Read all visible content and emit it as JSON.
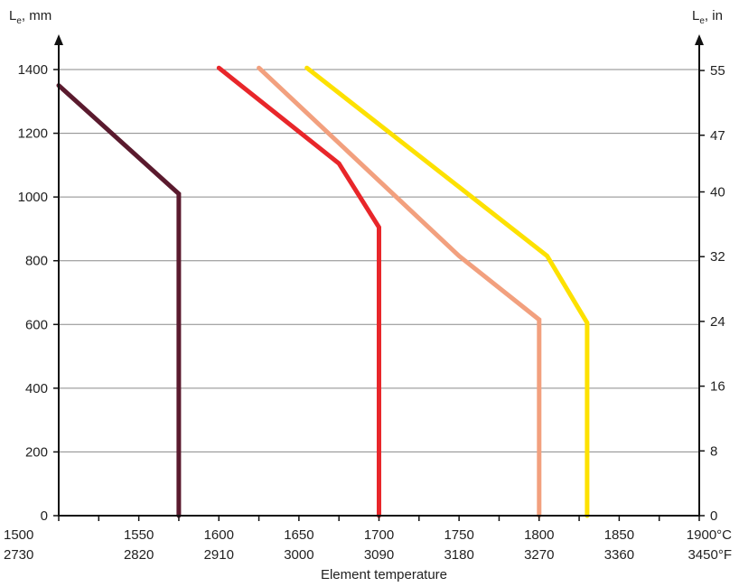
{
  "chart_data": {
    "type": "line",
    "y_left_label_main": "L",
    "y_left_label_sub": "e",
    "y_left_label_unit": ", mm",
    "y_right_label_main": "L",
    "y_right_label_sub": "e",
    "y_right_label_unit": ", in",
    "xlabel": "Element temperature",
    "xlim": [
      1500,
      1900
    ],
    "ylim": [
      0,
      1450
    ],
    "grid": "horizontal",
    "x_ticks_c": [
      {
        "value": 1500,
        "label": "1500"
      },
      {
        "value": 1550,
        "label": "1550"
      },
      {
        "value": 1600,
        "label": "1600"
      },
      {
        "value": 1650,
        "label": "1650"
      },
      {
        "value": 1700,
        "label": "1700"
      },
      {
        "value": 1750,
        "label": "1750"
      },
      {
        "value": 1800,
        "label": "1800"
      },
      {
        "value": 1850,
        "label": "1850"
      },
      {
        "value": 1900,
        "label": "1900°C"
      }
    ],
    "x_ticks_f": [
      {
        "value": 1500,
        "label": "2730"
      },
      {
        "value": 1550,
        "label": "2820"
      },
      {
        "value": 1600,
        "label": "2910"
      },
      {
        "value": 1650,
        "label": "3000"
      },
      {
        "value": 1700,
        "label": "3090"
      },
      {
        "value": 1750,
        "label": "3180"
      },
      {
        "value": 1800,
        "label": "3270"
      },
      {
        "value": 1850,
        "label": "3360"
      },
      {
        "value": 1900,
        "label": "3450°F"
      }
    ],
    "x_minor_ticks": [
      1525,
      1575,
      1625,
      1675,
      1725,
      1775,
      1825,
      1875
    ],
    "y_ticks_mm": [
      0,
      200,
      400,
      600,
      800,
      1000,
      1200,
      1400
    ],
    "y_ticks_in": [
      {
        "value": 0,
        "label": "0"
      },
      {
        "value": 203.2,
        "label": "8"
      },
      {
        "value": 406.4,
        "label": "16"
      },
      {
        "value": 609.6,
        "label": "24"
      },
      {
        "value": 812.8,
        "label": "32"
      },
      {
        "value": 1016,
        "label": "40"
      },
      {
        "value": 1193.8,
        "label": "47"
      },
      {
        "value": 1397,
        "label": "55"
      }
    ],
    "series": [
      {
        "color": "#5a1a2e",
        "points": [
          [
            1500,
            1350
          ],
          [
            1575,
            1010
          ],
          [
            1575,
            0
          ]
        ]
      },
      {
        "color": "#e8262a",
        "points": [
          [
            1600,
            1405
          ],
          [
            1675,
            1105
          ],
          [
            1700,
            905
          ],
          [
            1700,
            0
          ]
        ]
      },
      {
        "color": "#f2a07e",
        "points": [
          [
            1625,
            1405
          ],
          [
            1750,
            815
          ],
          [
            1800,
            615
          ],
          [
            1800,
            0
          ]
        ]
      },
      {
        "color": "#fde100",
        "points": [
          [
            1655,
            1405
          ],
          [
            1805,
            815
          ],
          [
            1830,
            605
          ],
          [
            1830,
            0
          ]
        ]
      }
    ]
  }
}
